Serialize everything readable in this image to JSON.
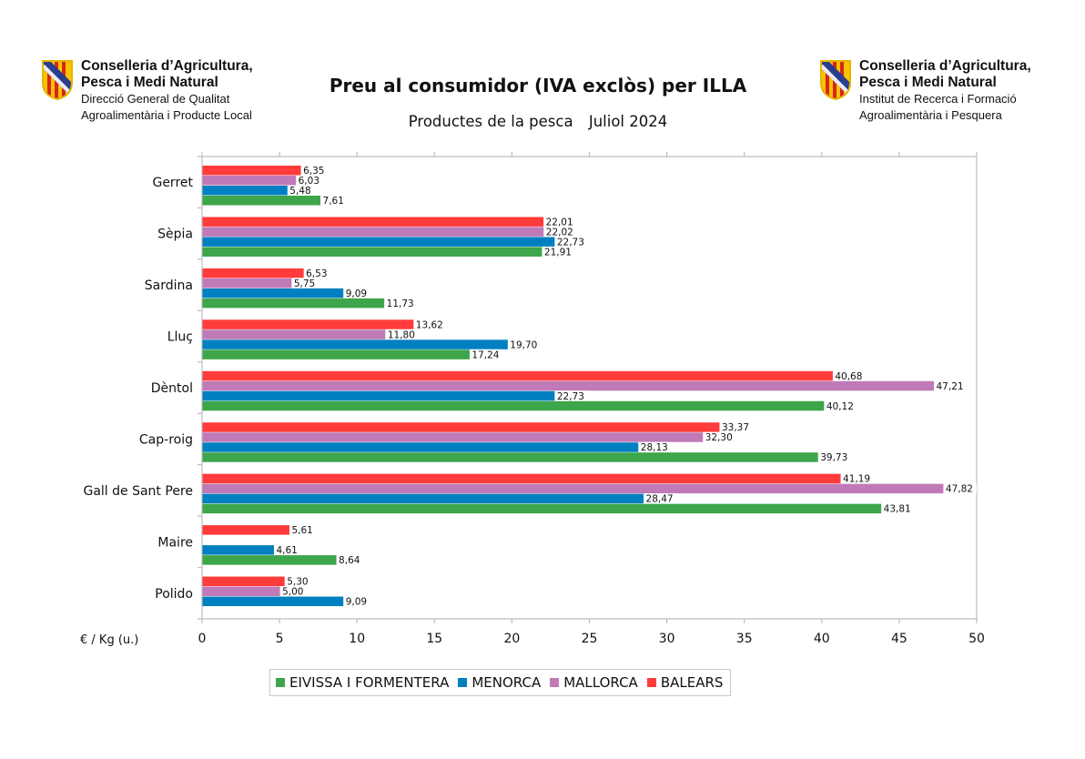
{
  "header": {
    "left_org": {
      "name_line1": "Conselleria d’Agricultura,",
      "name_line2": "Pesca i Medi Natural",
      "sub_line1": "Direcció General de Qualitat",
      "sub_line2": "Agroalimentària i Producte Local",
      "logo_icon": "balearic-shield-icon"
    },
    "right_org": {
      "name_line1": "Conselleria d’Agricultura,",
      "name_line2": "Pesca i Medi Natural",
      "sub_line1": "Institut de Recerca i Formació",
      "sub_line2": "Agroalimentària i Pesquera",
      "logo_icon": "balearic-shield-icon"
    }
  },
  "chart_data": {
    "type": "bar",
    "orientation": "horizontal",
    "title": "Preu al consumidor (IVA exclòs) per ILLA",
    "subtitle_left": "Productes de la pesca",
    "subtitle_right": "Juliol 2024",
    "xlabel": "€ / Kg (u.)",
    "ylabel": "",
    "xlim": [
      0,
      50
    ],
    "xticks": [
      0,
      5,
      10,
      15,
      20,
      25,
      30,
      35,
      40,
      45,
      50
    ],
    "grid": false,
    "legend_position": "bottom",
    "categories": [
      "Gerret",
      "Sèpia",
      "Sardina",
      "Lluç",
      "Dèntol",
      "Cap-roig",
      "Gall de Sant Pere",
      "Maire",
      "Polido"
    ],
    "series": [
      {
        "name": "BALEARS",
        "color": "#ff3b3b",
        "values": [
          6.35,
          22.01,
          6.53,
          13.62,
          40.68,
          33.37,
          41.19,
          5.61,
          5.3
        ],
        "labels": [
          "6,35",
          "22,01",
          "6,53",
          "13,62",
          "40,68",
          "33,37",
          "41,19",
          "5,61",
          "5,30"
        ]
      },
      {
        "name": "MALLORCA",
        "color": "#c07ab8",
        "values": [
          6.03,
          22.02,
          5.75,
          11.8,
          47.21,
          32.3,
          47.82,
          null,
          5.0
        ],
        "labels": [
          "6,03",
          "22,02",
          "5,75",
          "11,80",
          "47,21",
          "32,30",
          "47,82",
          null,
          "5,00"
        ]
      },
      {
        "name": "MENORCA",
        "color": "#0080c0",
        "values": [
          5.48,
          22.73,
          9.09,
          19.7,
          22.73,
          28.13,
          28.47,
          4.61,
          9.09
        ],
        "labels": [
          "5,48",
          "22,73",
          "9,09",
          "19,70",
          "22,73",
          "28,13",
          "28,47",
          "4,61",
          "9,09"
        ]
      },
      {
        "name": "EIVISSA I FORMENTERA",
        "color": "#3da54a",
        "values": [
          7.61,
          21.91,
          11.73,
          17.24,
          40.12,
          39.73,
          43.81,
          8.64,
          null
        ],
        "labels": [
          "7,61",
          "21,91",
          "11,73",
          "17,24",
          "40,12",
          "39,73",
          "43,81",
          "8,64",
          null
        ]
      }
    ],
    "legend": [
      {
        "name": "EIVISSA I FORMENTERA",
        "color": "#3da54a"
      },
      {
        "name": "MENORCA",
        "color": "#0080c0"
      },
      {
        "name": "MALLORCA",
        "color": "#c07ab8"
      },
      {
        "name": "BALEARS",
        "color": "#ff3b3b"
      }
    ]
  }
}
